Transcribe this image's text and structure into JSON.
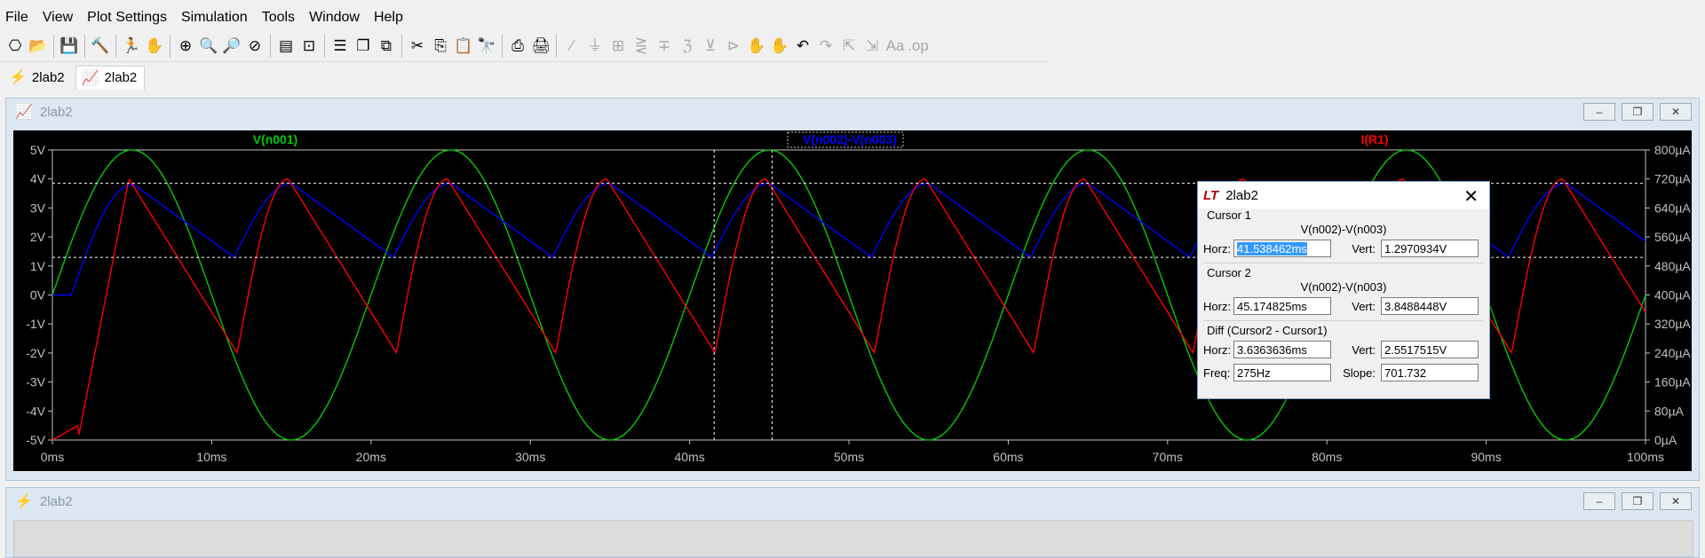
{
  "menu": [
    "File",
    "View",
    "Plot Settings",
    "Simulation",
    "Tools",
    "Window",
    "Help"
  ],
  "toolbar": {
    "groups": [
      [
        {
          "icon": "schematic-open-icon",
          "g": "⎔"
        },
        {
          "icon": "folder-open-icon",
          "g": "📂"
        }
      ],
      [
        {
          "icon": "save-icon",
          "g": "💾"
        }
      ],
      [
        {
          "icon": "control-panel-icon",
          "g": "🔨"
        }
      ],
      [
        {
          "icon": "run-icon",
          "g": "🏃"
        },
        {
          "icon": "halt-icon",
          "g": "✋"
        }
      ],
      [
        {
          "icon": "zoom-area-icon",
          "g": "⊕"
        },
        {
          "icon": "zoom-in-icon",
          "g": "🔍"
        },
        {
          "icon": "zoom-out-icon",
          "g": "🔎"
        },
        {
          "icon": "zoom-cancel-icon",
          "g": "⊘"
        }
      ],
      [
        {
          "icon": "autorange-icon",
          "g": "▤"
        },
        {
          "icon": "fit-icon",
          "g": "⊡"
        }
      ],
      [
        {
          "icon": "tile-horizontal-icon",
          "g": "☰"
        },
        {
          "icon": "cascade-icon",
          "g": "❐"
        },
        {
          "icon": "tile-vertical-icon",
          "g": "⧉"
        }
      ],
      [
        {
          "icon": "cut-icon",
          "g": "✂"
        },
        {
          "icon": "copy-icon",
          "g": "⎘"
        },
        {
          "icon": "paste-icon",
          "g": "📋"
        },
        {
          "icon": "find-icon",
          "g": "🔭"
        }
      ],
      [
        {
          "icon": "print-setup-icon",
          "g": "⎙"
        },
        {
          "icon": "print-icon",
          "g": "🖨"
        }
      ],
      [
        {
          "icon": "wire-icon",
          "g": "∕",
          "d": 1
        },
        {
          "icon": "ground-icon",
          "g": "⏚",
          "d": 1
        },
        {
          "icon": "label-icon",
          "g": "⊞",
          "d": 1
        },
        {
          "icon": "resistor-icon",
          "g": "⋛",
          "d": 1
        },
        {
          "icon": "capacitor-icon",
          "g": "∓",
          "d": 1
        },
        {
          "icon": "inductor-icon",
          "g": "ℨ",
          "d": 1
        },
        {
          "icon": "diode-icon",
          "g": "⊻",
          "d": 1
        },
        {
          "icon": "component-icon",
          "g": "⊳",
          "d": 1
        },
        {
          "icon": "drag-icon",
          "g": "✋",
          "d": 1
        },
        {
          "icon": "move-icon",
          "g": "✋",
          "d": 1
        },
        {
          "icon": "undo-icon",
          "g": "↶"
        },
        {
          "icon": "redo-icon",
          "g": "↷",
          "d": 1
        },
        {
          "icon": "rotate-icon",
          "g": "⇱",
          "d": 1
        },
        {
          "icon": "mirror-icon",
          "g": "⇲",
          "d": 1
        },
        {
          "icon": "text-icon",
          "g": "Aa",
          "d": 1
        },
        {
          "icon": "spice-directive-icon",
          "g": ".op",
          "d": 1
        }
      ]
    ]
  },
  "tabs": [
    {
      "label": "2lab2",
      "icon": "schematic-tab-icon",
      "glyph": "⚡",
      "active": false
    },
    {
      "label": "2lab2",
      "icon": "waveform-tab-icon",
      "glyph": "📈",
      "active": true
    }
  ],
  "plot_window": {
    "title": "2lab2",
    "buttons": [
      "–",
      "❐",
      "✕"
    ]
  },
  "schematic_window": {
    "title": "2lab2",
    "buttons": [
      "–",
      "❐",
      "✕"
    ]
  },
  "chart_data": {
    "type": "line",
    "x_unit": "ms",
    "xlim": [
      0,
      100
    ],
    "x_ticks": [
      "0ms",
      "10ms",
      "20ms",
      "30ms",
      "40ms",
      "50ms",
      "60ms",
      "70ms",
      "80ms",
      "90ms",
      "100ms"
    ],
    "y_left_lim": [
      -5,
      5
    ],
    "y_left_ticks": [
      "5V",
      "4V",
      "3V",
      "2V",
      "1V",
      "0V",
      "-1V",
      "-2V",
      "-3V",
      "-4V",
      "-5V"
    ],
    "y_right_lim": [
      0,
      800
    ],
    "y_right_ticks": [
      "800µA",
      "720µA",
      "640µA",
      "560µA",
      "480µA",
      "400µA",
      "320µA",
      "240µA",
      "160µA",
      "80µA",
      "0µA"
    ],
    "series": [
      {
        "name": "V(n001)",
        "color": "#00cc00",
        "axis": "left",
        "kind": "sine",
        "amplitude_V": 5,
        "period_ms": 20,
        "phase_start_ms": 0
      },
      {
        "name": "V(n002)-V(n003)",
        "color": "#0000ff",
        "axis": "left",
        "kind": "peak-hold",
        "peak_V": 3.85,
        "min_V": 1.3,
        "period_ms": 10
      },
      {
        "name": "I(R1)",
        "color": "#ff0000",
        "axis": "right",
        "kind": "charging",
        "peak_uA": 720,
        "min_uA": 240,
        "period_ms": 10
      }
    ],
    "cursors": {
      "cursor1_ms": 41.538462,
      "cursor1_V": 1.2970934,
      "cursor2_ms": 45.174825,
      "cursor2_V": 3.8488448
    },
    "grid": false
  },
  "cursor_dialog": {
    "title": "2lab2",
    "cursor1": {
      "group": "Cursor 1",
      "expr": "V(n002)-V(n003)",
      "horz": "41.538462ms",
      "vert": "1.2970934V"
    },
    "cursor2": {
      "group": "Cursor 2",
      "expr": "V(n002)-V(n003)",
      "horz": "45.174825ms",
      "vert": "3.8488448V"
    },
    "diff": {
      "group": "Diff (Cursor2 - Cursor1)",
      "horz": "3.6363636ms",
      "vert": "2.5517515V",
      "freq": "275Hz",
      "slope": "701.732"
    },
    "labels": {
      "horz": "Horz:",
      "vert": "Vert:",
      "freq": "Freq:",
      "slope": "Slope:"
    }
  }
}
